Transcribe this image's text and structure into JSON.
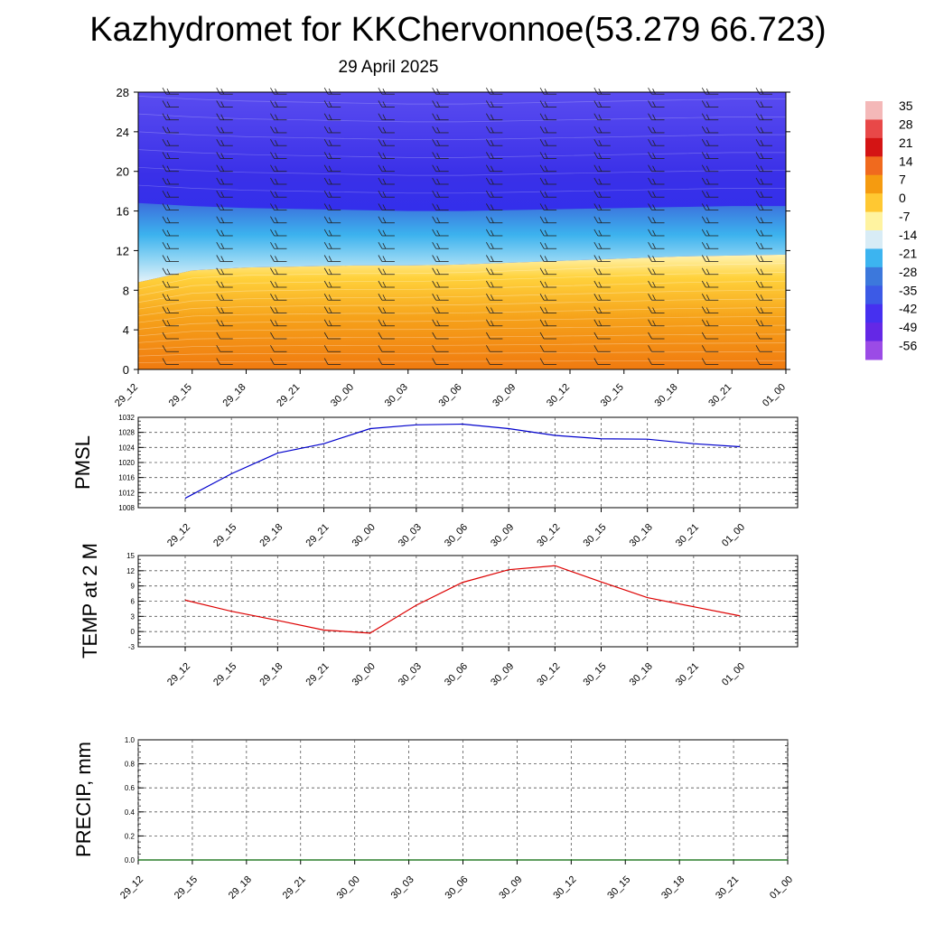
{
  "title": "Kazhydromet for KKChervonnoe(53.279 66.723)",
  "subtitle": "29 April 2025",
  "colorbar": {
    "labels": [
      "35",
      "28",
      "21",
      "14",
      "7",
      "0",
      "-7",
      "-14",
      "-21",
      "-28",
      "-35",
      "-42",
      "-49",
      "-56"
    ],
    "colors": [
      "#f4b8b8",
      "#e84848",
      "#d41414",
      "#f06a1e",
      "#f59b10",
      "#ffc832",
      "#fff3a0",
      "#d8ecf6",
      "#3cb4f0",
      "#3c78dc",
      "#3c5ae6",
      "#4630f0",
      "#6428e6",
      "#9b4be6"
    ]
  },
  "chart_data": [
    {
      "type": "heatmap",
      "title": "",
      "xlabel": "",
      "ylabel": "",
      "x": [
        "29_12",
        "29_15",
        "29_18",
        "29_21",
        "30_00",
        "30_03",
        "30_06",
        "30_09",
        "30_12",
        "30_15",
        "30_18",
        "30_21",
        "01_00"
      ],
      "y_ticks": [
        0,
        4,
        8,
        12,
        16,
        20,
        24,
        28
      ],
      "ylim": [
        0,
        28
      ],
      "freezing_level": [
        8.8,
        10.0,
        10.3,
        10.4,
        10.5,
        10.5,
        10.6,
        10.8,
        11.0,
        11.2,
        11.4,
        11.5,
        11.6
      ],
      "tropopause_level": [
        16.8,
        16.5,
        16.3,
        16.2,
        16.1,
        16.0,
        16.0,
        16.1,
        16.2,
        16.3,
        16.4,
        16.5,
        16.5
      ],
      "colorbar_range": [
        -56,
        35
      ]
    },
    {
      "type": "line",
      "ylabel": "PMSL",
      "ylim": [
        1008,
        1032
      ],
      "y_ticks": [
        1008,
        1012,
        1016,
        1020,
        1024,
        1028,
        1032
      ],
      "x": [
        "29_12",
        "29_15",
        "29_18",
        "29_21",
        "30_00",
        "30_03",
        "30_06",
        "30_09",
        "30_12",
        "30_15",
        "30_18",
        "30_21",
        "01_00"
      ],
      "series": [
        {
          "values": [
            1010.5,
            1017.0,
            1022.5,
            1025.0,
            1029.0,
            1030.0,
            1030.2,
            1029.0,
            1027.2,
            1026.3,
            1026.2,
            1025.0,
            1024.2
          ]
        }
      ]
    },
    {
      "type": "line",
      "ylabel": "TEMP at 2 M",
      "ylim": [
        -3,
        15
      ],
      "y_ticks": [
        -3,
        0,
        3,
        6,
        9,
        12,
        15
      ],
      "x": [
        "29_12",
        "29_15",
        "29_18",
        "29_21",
        "30_00",
        "30_03",
        "30_06",
        "30_09",
        "30_12",
        "30_15",
        "30_18",
        "30_21",
        "01_00"
      ],
      "series": [
        {
          "values": [
            6.2,
            4.0,
            2.2,
            0.3,
            -0.3,
            5.2,
            9.7,
            12.2,
            13.0,
            9.8,
            6.7,
            4.9,
            3.1
          ]
        }
      ]
    },
    {
      "type": "line",
      "ylabel": "PRECIP, mm",
      "ylim": [
        0,
        1
      ],
      "y_ticks": [
        "0.0",
        "0.2",
        "0.4",
        "0.6",
        "0.8",
        "1.0"
      ],
      "x": [
        "29_12",
        "29_15",
        "29_18",
        "29_21",
        "30_00",
        "30_03",
        "30_06",
        "30_09",
        "30_12",
        "30_15",
        "30_18",
        "30_21",
        "01_00"
      ],
      "series": [
        {
          "values": [
            0,
            0,
            0,
            0,
            0,
            0,
            0,
            0,
            0,
            0,
            0,
            0,
            0
          ]
        }
      ]
    }
  ]
}
